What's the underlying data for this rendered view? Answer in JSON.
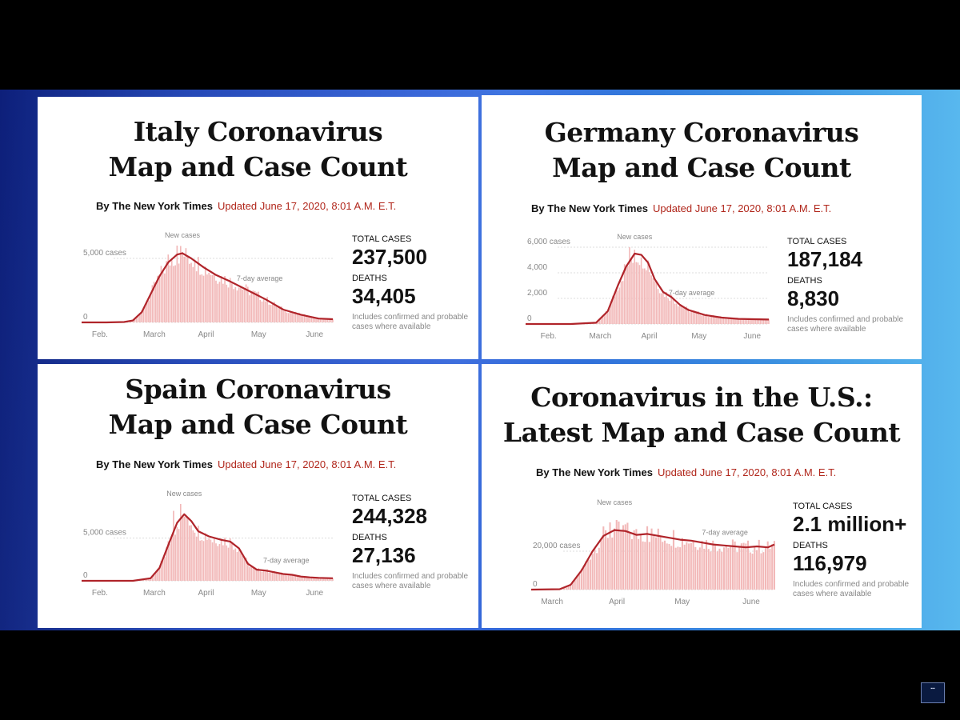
{
  "byline": "By The New York Times",
  "updated": "Updated June 17, 2020, 8:01 A.M. E.T.",
  "labels": {
    "total_cases": "TOTAL CASES",
    "deaths": "DEATHS",
    "note": "Includes confirmed and probable cases where available",
    "new_cases": "New cases",
    "avg": "7-day average"
  },
  "colors": {
    "bar": "#f2b8b8",
    "line": "#b0242a",
    "updated": "#b1271c"
  },
  "panels": [
    {
      "headline": [
        "Italy Coronavirus",
        "Map and Case Count"
      ],
      "total_cases": "237,500",
      "deaths": "34,405"
    },
    {
      "headline": [
        "Germany Coronavirus",
        "Map and Case Count"
      ],
      "total_cases": "187,184",
      "deaths": "8,830"
    },
    {
      "headline": [
        "Spain Coronavirus",
        "Map and Case Count"
      ],
      "total_cases": "244,328",
      "deaths": "27,136"
    },
    {
      "headline": [
        "Coronavirus in the U.S.:",
        "Latest Map and Case Count"
      ],
      "total_cases": "2.1 million+",
      "deaths": "116,979"
    }
  ],
  "chart_data": [
    {
      "type": "bar",
      "title": "",
      "x_ticks": [
        "Feb.",
        "March",
        "April",
        "May",
        "June"
      ],
      "x_tick_days": [
        0,
        29,
        60,
        90,
        121
      ],
      "xlim": [
        -4,
        138
      ],
      "y_ticks": [
        {
          "value": 0,
          "label": "0"
        },
        {
          "value": 5000,
          "label": "5,000 cases"
        }
      ],
      "ylim": [
        0,
        6000
      ],
      "grid": true,
      "x": "days since Feb. 1",
      "series": [
        {
          "name": "7-day average",
          "points": [
            [
              -4,
              0
            ],
            [
              10,
              0
            ],
            [
              20,
              30
            ],
            [
              25,
              150
            ],
            [
              30,
              800
            ],
            [
              35,
              2200
            ],
            [
              40,
              3600
            ],
            [
              45,
              4700
            ],
            [
              50,
              5300
            ],
            [
              53,
              5400
            ],
            [
              58,
              5000
            ],
            [
              65,
              4300
            ],
            [
              72,
              3700
            ],
            [
              80,
              3200
            ],
            [
              90,
              2500
            ],
            [
              100,
              1800
            ],
            [
              110,
              1000
            ],
            [
              120,
              600
            ],
            [
              130,
              300
            ],
            [
              138,
              250
            ]
          ]
        }
      ],
      "bars_peak": [
        [
          45,
          5300
        ],
        [
          50,
          6400
        ],
        [
          55,
          5800
        ],
        [
          60,
          4900
        ]
      ]
    },
    {
      "type": "bar",
      "title": "",
      "x_ticks": [
        "Feb.",
        "March",
        "April",
        "May",
        "June"
      ],
      "x_tick_days": [
        0,
        29,
        60,
        90,
        121
      ],
      "xlim": [
        -7,
        138
      ],
      "y_ticks": [
        {
          "value": 0,
          "label": "0"
        },
        {
          "value": 2000,
          "label": "2,000"
        },
        {
          "value": 4000,
          "label": "4,000"
        },
        {
          "value": 6000,
          "label": "6,000 cases"
        }
      ],
      "ylim": [
        0,
        6000
      ],
      "grid": true,
      "x": "days since Feb. 1",
      "series": [
        {
          "name": "7-day average",
          "points": [
            [
              -7,
              0
            ],
            [
              20,
              0
            ],
            [
              35,
              100
            ],
            [
              42,
              1000
            ],
            [
              48,
              3000
            ],
            [
              53,
              4500
            ],
            [
              58,
              5500
            ],
            [
              62,
              5400
            ],
            [
              66,
              4800
            ],
            [
              70,
              3500
            ],
            [
              75,
              2500
            ],
            [
              80,
              2100
            ],
            [
              85,
              1500
            ],
            [
              90,
              1100
            ],
            [
              100,
              700
            ],
            [
              110,
              500
            ],
            [
              120,
              400
            ],
            [
              138,
              350
            ]
          ]
        }
      ],
      "bars_peak": [
        [
          55,
          6000
        ],
        [
          58,
          5800
        ],
        [
          62,
          5200
        ],
        [
          68,
          3800
        ]
      ]
    },
    {
      "type": "bar",
      "title": "",
      "x_ticks": [
        "Feb.",
        "March",
        "April",
        "May",
        "June"
      ],
      "x_tick_days": [
        0,
        29,
        60,
        90,
        121
      ],
      "xlim": [
        -4,
        138
      ],
      "y_ticks": [
        {
          "value": 0,
          "label": "0"
        },
        {
          "value": 5000,
          "label": "5,000 cases"
        }
      ],
      "ylim": [
        0,
        9000
      ],
      "grid": true,
      "x": "days since Feb. 1",
      "series": [
        {
          "name": "7-day average",
          "points": [
            [
              -4,
              0
            ],
            [
              25,
              0
            ],
            [
              35,
              300
            ],
            [
              40,
              1500
            ],
            [
              45,
              4200
            ],
            [
              50,
              6800
            ],
            [
              54,
              7800
            ],
            [
              58,
              7000
            ],
            [
              62,
              5800
            ],
            [
              68,
              5200
            ],
            [
              75,
              4800
            ],
            [
              80,
              4600
            ],
            [
              85,
              3800
            ],
            [
              90,
              2000
            ],
            [
              95,
              1300
            ],
            [
              100,
              1200
            ],
            [
              105,
              1000
            ],
            [
              110,
              800
            ],
            [
              115,
              700
            ],
            [
              120,
              500
            ],
            [
              125,
              400
            ],
            [
              130,
              350
            ],
            [
              138,
              300
            ]
          ]
        }
      ],
      "bars_peak": [
        [
          48,
          8200
        ],
        [
          52,
          9000
        ],
        [
          55,
          7600
        ],
        [
          70,
          4500
        ]
      ]
    },
    {
      "type": "bar",
      "title": "",
      "x_ticks": [
        "March",
        "April",
        "May",
        "June"
      ],
      "x_tick_days": [
        0,
        31,
        61,
        92
      ],
      "xlim": [
        -3,
        108
      ],
      "y_ticks": [
        {
          "value": 0,
          "label": "0"
        },
        {
          "value": 20000,
          "label": "20,000 cases"
        }
      ],
      "ylim": [
        0,
        40000
      ],
      "grid": true,
      "x": "days since March 1",
      "series": [
        {
          "name": "7-day average",
          "points": [
            [
              -3,
              0
            ],
            [
              10,
              200
            ],
            [
              15,
              2500
            ],
            [
              20,
              10000
            ],
            [
              25,
              20000
            ],
            [
              30,
              28000
            ],
            [
              35,
              31000
            ],
            [
              40,
              30500
            ],
            [
              45,
              28500
            ],
            [
              50,
              29000
            ],
            [
              55,
              28000
            ],
            [
              60,
              27000
            ],
            [
              65,
              26000
            ],
            [
              70,
              25500
            ],
            [
              75,
              24500
            ],
            [
              80,
              23500
            ],
            [
              85,
              23000
            ],
            [
              90,
              22500
            ],
            [
              95,
              22000
            ],
            [
              100,
              22500
            ],
            [
              105,
              22000
            ],
            [
              108,
              23500
            ]
          ]
        }
      ],
      "bars_peak": [
        [
          33,
          35000
        ],
        [
          40,
          34000
        ],
        [
          50,
          33000
        ],
        [
          62,
          31000
        ]
      ]
    }
  ]
}
